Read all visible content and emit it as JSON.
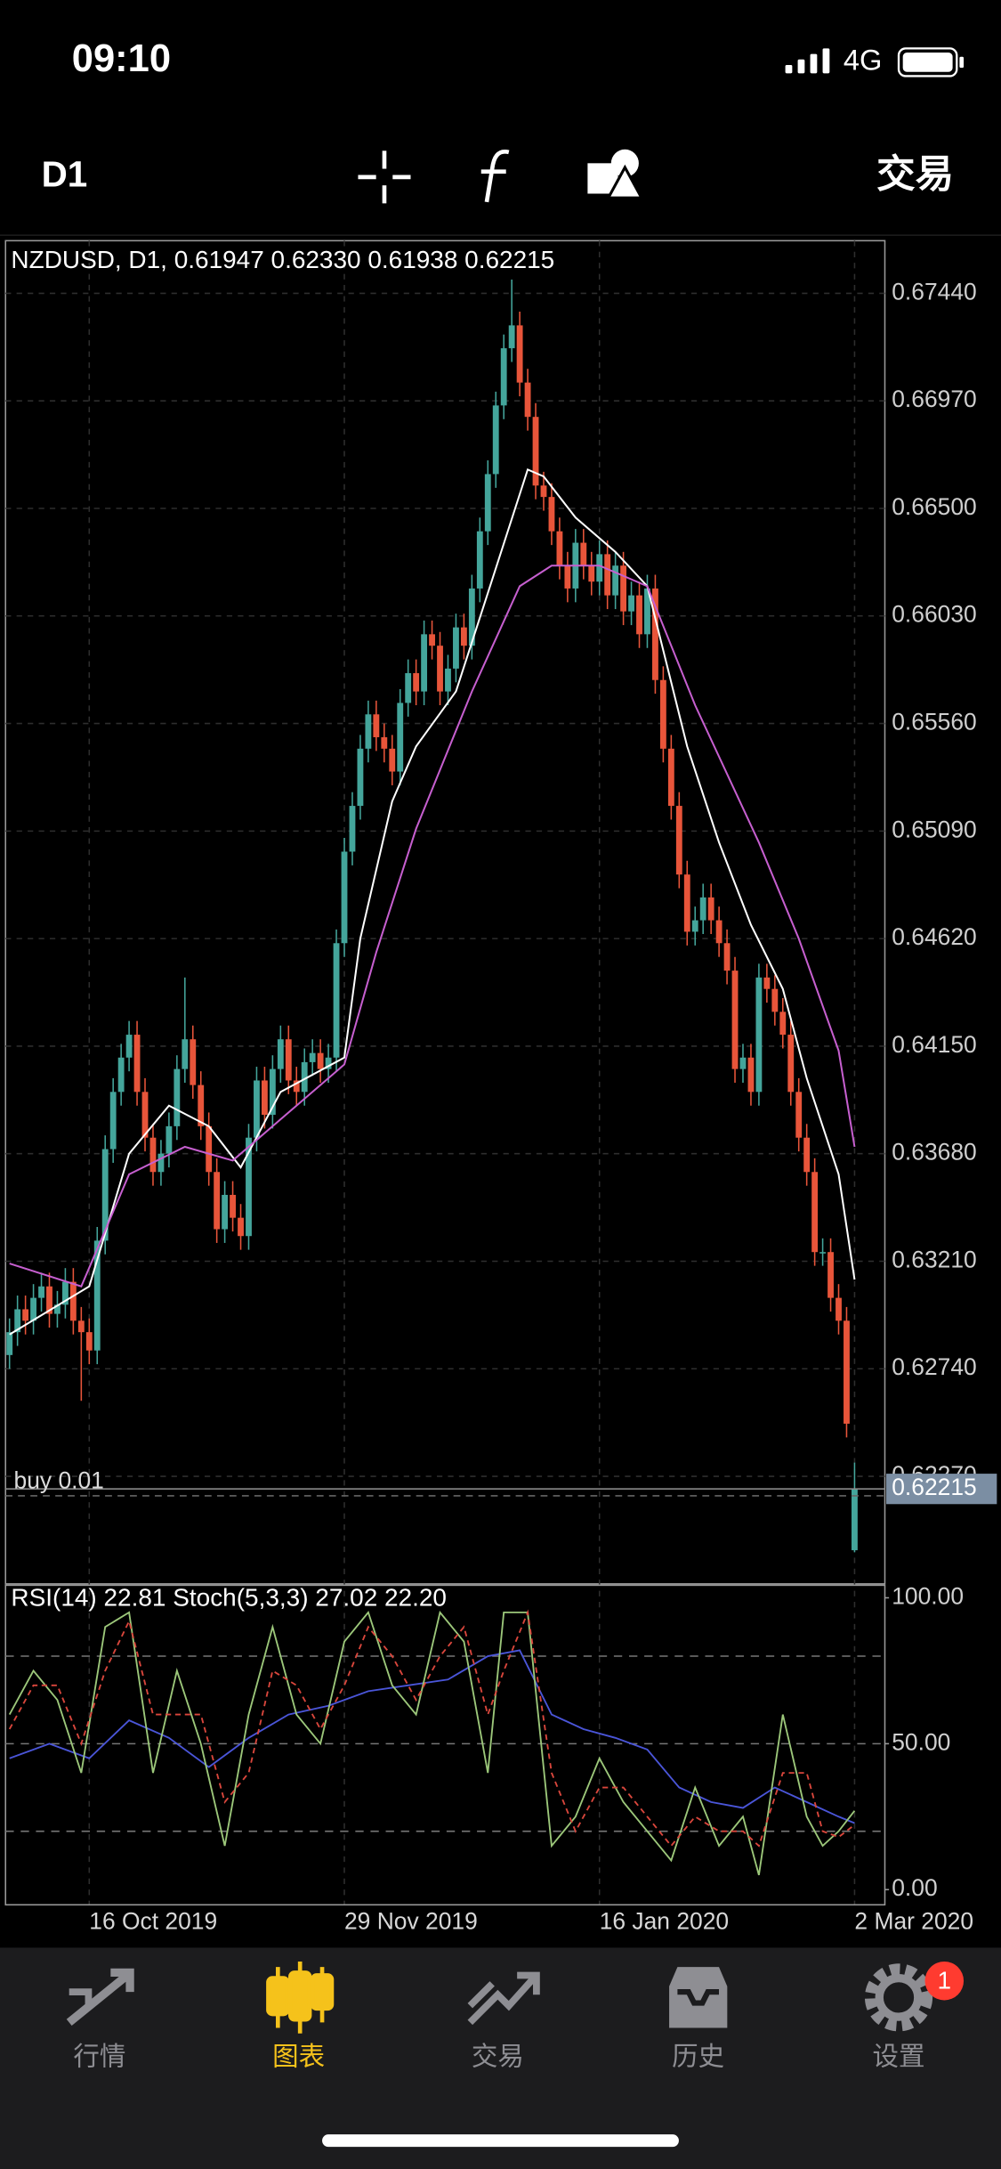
{
  "status_bar": {
    "time": "09:10",
    "network": "4G"
  },
  "toolbar": {
    "timeframe": "D1",
    "trade": "交易"
  },
  "chart_data": [
    {
      "type": "candlestick",
      "title": "NZDUSD, D1, 0.61947 0.62330 0.61938 0.62215",
      "up_color": "#44a59b",
      "down_color": "#e8553a",
      "grid": true,
      "xlim": [
        -0.5,
        109.8
      ],
      "ylim": [
        0.618,
        0.6767
      ],
      "yticks": [
        {
          "value": 0.6744,
          "label": "0.67440"
        },
        {
          "value": 0.6697,
          "label": "0.66970"
        },
        {
          "value": 0.665,
          "label": "0.66500"
        },
        {
          "value": 0.6603,
          "label": "0.66030"
        },
        {
          "value": 0.6556,
          "label": "0.65560"
        },
        {
          "value": 0.6509,
          "label": "0.65090"
        },
        {
          "value": 0.6462,
          "label": "0.64620"
        },
        {
          "value": 0.6415,
          "label": "0.64150"
        },
        {
          "value": 0.6368,
          "label": "0.63680"
        },
        {
          "value": 0.6321,
          "label": "0.63210"
        },
        {
          "value": 0.6274,
          "label": "0.62740"
        },
        {
          "value": 0.6227,
          "label": "0.62270"
        }
      ],
      "xticks": [
        {
          "value": 10,
          "label": "16 Oct 2019"
        },
        {
          "value": 42,
          "label": "29 Nov 2019"
        },
        {
          "value": 74,
          "label": "16 Jan 2020"
        },
        {
          "value": 106,
          "label": "2 Mar 2020"
        }
      ],
      "open": [
        0.628,
        0.629,
        0.63,
        0.6295,
        0.6305,
        0.631,
        0.6298,
        0.6302,
        0.6312,
        0.6295,
        0.629,
        0.6282,
        0.633,
        0.637,
        0.6395,
        0.641,
        0.642,
        0.6395,
        0.6375,
        0.636,
        0.6368,
        0.638,
        0.6405,
        0.6418,
        0.6398,
        0.638,
        0.636,
        0.6335,
        0.635,
        0.634,
        0.6332,
        0.6375,
        0.64,
        0.6385,
        0.6405,
        0.6418,
        0.64,
        0.6395,
        0.6408,
        0.6412,
        0.6405,
        0.641,
        0.646,
        0.65,
        0.652,
        0.6545,
        0.656,
        0.655,
        0.6545,
        0.6535,
        0.6565,
        0.6578,
        0.657,
        0.6595,
        0.659,
        0.657,
        0.658,
        0.6598,
        0.659,
        0.6615,
        0.664,
        0.6665,
        0.6695,
        0.672,
        0.673,
        0.6705,
        0.669,
        0.666,
        0.6655,
        0.664,
        0.6625,
        0.6615,
        0.6635,
        0.6625,
        0.6618,
        0.663,
        0.6612,
        0.6625,
        0.6605,
        0.6612,
        0.6595,
        0.6615,
        0.6575,
        0.6545,
        0.652,
        0.649,
        0.6465,
        0.647,
        0.648,
        0.647,
        0.646,
        0.6448,
        0.6405,
        0.641,
        0.6395,
        0.6445,
        0.644,
        0.643,
        0.642,
        0.6395,
        0.6375,
        0.636,
        0.6325,
        0.6325,
        0.6305,
        0.6295,
        0.61947
      ],
      "high": [
        0.6296,
        0.6306,
        0.6306,
        0.6311,
        0.6316,
        0.6316,
        0.6308,
        0.6318,
        0.6318,
        0.6301,
        0.6296,
        0.6336,
        0.6376,
        0.6401,
        0.6416,
        0.6426,
        0.6426,
        0.6401,
        0.6381,
        0.6374,
        0.6386,
        0.6411,
        0.6445,
        0.6424,
        0.6404,
        0.6386,
        0.6366,
        0.6356,
        0.6356,
        0.6346,
        0.6381,
        0.6406,
        0.6406,
        0.6411,
        0.6424,
        0.6424,
        0.6406,
        0.6414,
        0.6418,
        0.6418,
        0.6416,
        0.6466,
        0.6506,
        0.6526,
        0.6551,
        0.6566,
        0.6566,
        0.6556,
        0.6551,
        0.6571,
        0.6584,
        0.6584,
        0.6601,
        0.6601,
        0.6596,
        0.6586,
        0.6604,
        0.6604,
        0.6621,
        0.6646,
        0.6671,
        0.6701,
        0.6726,
        0.675,
        0.6736,
        0.6711,
        0.6696,
        0.6666,
        0.6661,
        0.6646,
        0.6631,
        0.6641,
        0.6641,
        0.6631,
        0.6636,
        0.6636,
        0.6631,
        0.6631,
        0.6618,
        0.6618,
        0.6621,
        0.6621,
        0.6581,
        0.6551,
        0.6526,
        0.6496,
        0.6476,
        0.6486,
        0.6486,
        0.6476,
        0.6466,
        0.6454,
        0.6416,
        0.6416,
        0.6451,
        0.6451,
        0.6446,
        0.6436,
        0.6426,
        0.6401,
        0.6381,
        0.6366,
        0.6331,
        0.6331,
        0.6311,
        0.6301,
        0.6233
      ],
      "low": [
        0.6274,
        0.6284,
        0.6289,
        0.6289,
        0.6299,
        0.6292,
        0.6292,
        0.6296,
        0.6289,
        0.626,
        0.6276,
        0.6276,
        0.6324,
        0.6364,
        0.6389,
        0.6404,
        0.6389,
        0.6369,
        0.6354,
        0.6354,
        0.6362,
        0.6374,
        0.6399,
        0.6392,
        0.6374,
        0.6354,
        0.6329,
        0.6329,
        0.6334,
        0.6326,
        0.6326,
        0.6369,
        0.6379,
        0.6379,
        0.6399,
        0.6394,
        0.6389,
        0.6389,
        0.6402,
        0.6399,
        0.6399,
        0.6404,
        0.6454,
        0.6494,
        0.6514,
        0.6539,
        0.6544,
        0.6539,
        0.6529,
        0.6529,
        0.6559,
        0.6564,
        0.6564,
        0.6584,
        0.6564,
        0.6564,
        0.6574,
        0.6584,
        0.6584,
        0.6609,
        0.6634,
        0.6659,
        0.6689,
        0.6714,
        0.6699,
        0.6684,
        0.6654,
        0.6649,
        0.6634,
        0.6619,
        0.6609,
        0.6609,
        0.6619,
        0.6612,
        0.6612,
        0.6606,
        0.6606,
        0.6599,
        0.6599,
        0.6589,
        0.6589,
        0.6569,
        0.6539,
        0.6514,
        0.6484,
        0.6459,
        0.6459,
        0.6464,
        0.6464,
        0.6454,
        0.6442,
        0.6399,
        0.6399,
        0.6389,
        0.6389,
        0.6434,
        0.6424,
        0.6414,
        0.6389,
        0.6369,
        0.6354,
        0.6319,
        0.6319,
        0.6299,
        0.6289,
        0.6244,
        0.61938
      ],
      "close": [
        0.629,
        0.63,
        0.6295,
        0.6305,
        0.631,
        0.6298,
        0.6302,
        0.6312,
        0.6295,
        0.629,
        0.6282,
        0.633,
        0.637,
        0.6395,
        0.641,
        0.642,
        0.6395,
        0.6375,
        0.636,
        0.6368,
        0.638,
        0.6405,
        0.6418,
        0.6398,
        0.638,
        0.636,
        0.6335,
        0.635,
        0.634,
        0.6332,
        0.6375,
        0.64,
        0.6385,
        0.6405,
        0.6418,
        0.64,
        0.6395,
        0.6408,
        0.6412,
        0.6405,
        0.641,
        0.646,
        0.65,
        0.652,
        0.6545,
        0.656,
        0.655,
        0.6545,
        0.6535,
        0.6565,
        0.6578,
        0.657,
        0.6595,
        0.659,
        0.657,
        0.658,
        0.6598,
        0.659,
        0.6615,
        0.664,
        0.6665,
        0.6695,
        0.672,
        0.673,
        0.6705,
        0.669,
        0.666,
        0.6655,
        0.664,
        0.6625,
        0.6615,
        0.6635,
        0.6625,
        0.6618,
        0.663,
        0.6612,
        0.6625,
        0.6605,
        0.6612,
        0.6595,
        0.6615,
        0.6575,
        0.6545,
        0.652,
        0.649,
        0.6465,
        0.647,
        0.648,
        0.647,
        0.646,
        0.6448,
        0.6405,
        0.641,
        0.6395,
        0.6445,
        0.644,
        0.643,
        0.642,
        0.6395,
        0.6375,
        0.636,
        0.6325,
        0.6325,
        0.6305,
        0.6295,
        0.625,
        0.62215
      ],
      "lines": [
        {
          "color": "#ffffff",
          "x": [
            0,
            10,
            15,
            20,
            25,
            29,
            34,
            42,
            44,
            48,
            51,
            56,
            60,
            65,
            67,
            71,
            76,
            80,
            85,
            89,
            93,
            97,
            100,
            104,
            106
          ],
          "values": [
            0.6289,
            0.631,
            0.6368,
            0.6389,
            0.638,
            0.6362,
            0.6395,
            0.641,
            0.6462,
            0.6522,
            0.6546,
            0.657,
            0.6613,
            0.6667,
            0.6664,
            0.6646,
            0.6631,
            0.6616,
            0.6546,
            0.6504,
            0.6468,
            0.644,
            0.6401,
            0.6359,
            0.6313
          ]
        },
        {
          "color": "#c65fcf",
          "x": [
            0,
            9,
            15,
            22,
            28,
            34,
            42,
            46,
            51,
            58,
            64,
            68,
            74,
            80,
            86,
            94,
            99,
            104,
            106
          ],
          "values": [
            0.632,
            0.631,
            0.6359,
            0.6371,
            0.6365,
            0.6383,
            0.6407,
            0.6456,
            0.651,
            0.657,
            0.6616,
            0.6625,
            0.6625,
            0.6616,
            0.6564,
            0.6504,
            0.6462,
            0.6413,
            0.6371
          ]
        }
      ],
      "order_line": {
        "label": "buy 0.01",
        "value": 0.62215,
        "value_label": "0.62215"
      }
    },
    {
      "type": "indicator",
      "title": "RSI(14) 22.81 Stoch(5,3,3) 27.02 22.20",
      "xlim": [
        -0.5,
        109.8
      ],
      "ylim": [
        -5.2,
        104.3
      ],
      "yticks": [
        {
          "value": 100,
          "label": "100.00"
        },
        {
          "value": 50,
          "label": "50.00"
        },
        {
          "value": 0,
          "label": "0.00"
        }
      ],
      "levels": [
        80,
        50,
        20
      ],
      "series": [
        {
          "color": "#4a55d8",
          "dashed": false,
          "x": [
            0,
            5,
            10,
            15,
            20,
            25,
            30,
            35,
            40,
            45,
            50,
            55,
            60,
            64,
            68,
            72,
            76,
            80,
            84,
            88,
            92,
            96,
            100,
            104,
            106
          ],
          "values": [
            45,
            50,
            45,
            58,
            52,
            42,
            52,
            60,
            63,
            68,
            70,
            72,
            80,
            82,
            60,
            55,
            52,
            48,
            35,
            30,
            28,
            35,
            30,
            25,
            22.81
          ]
        },
        {
          "color": "#9cc77a",
          "dashed": false,
          "x": [
            0,
            3,
            6,
            9,
            12,
            15,
            18,
            21,
            24,
            27,
            30,
            33,
            36,
            39,
            42,
            45,
            48,
            51,
            54,
            57,
            60,
            62,
            65,
            68,
            71,
            74,
            77,
            80,
            83,
            86,
            89,
            92,
            94,
            97,
            100,
            102,
            104,
            106
          ],
          "values": [
            60,
            75,
            65,
            40,
            90,
            95,
            40,
            75,
            50,
            15,
            60,
            90,
            60,
            50,
            85,
            95,
            70,
            60,
            95,
            85,
            40,
            95,
            95,
            15,
            25,
            45,
            30,
            20,
            10,
            35,
            15,
            25,
            5,
            60,
            25,
            15,
            20,
            27.02
          ]
        },
        {
          "color": "#d9463c",
          "dashed": true,
          "x": [
            0,
            3,
            6,
            9,
            12,
            15,
            18,
            21,
            24,
            27,
            30,
            33,
            36,
            39,
            42,
            45,
            48,
            51,
            54,
            57,
            60,
            62,
            65,
            68,
            71,
            74,
            77,
            80,
            83,
            86,
            89,
            92,
            94,
            97,
            100,
            102,
            104,
            106
          ],
          "values": [
            55,
            70,
            70,
            50,
            75,
            92,
            60,
            60,
            60,
            30,
            40,
            75,
            70,
            55,
            70,
            90,
            80,
            65,
            80,
            90,
            60,
            75,
            95,
            40,
            20,
            35,
            35,
            25,
            15,
            25,
            20,
            20,
            15,
            40,
            40,
            20,
            18,
            22.2
          ]
        }
      ]
    }
  ],
  "tab_bar": {
    "tabs": [
      "行情",
      "图表",
      "交易",
      "历史",
      "设置"
    ],
    "active": 1,
    "badge": 1
  }
}
